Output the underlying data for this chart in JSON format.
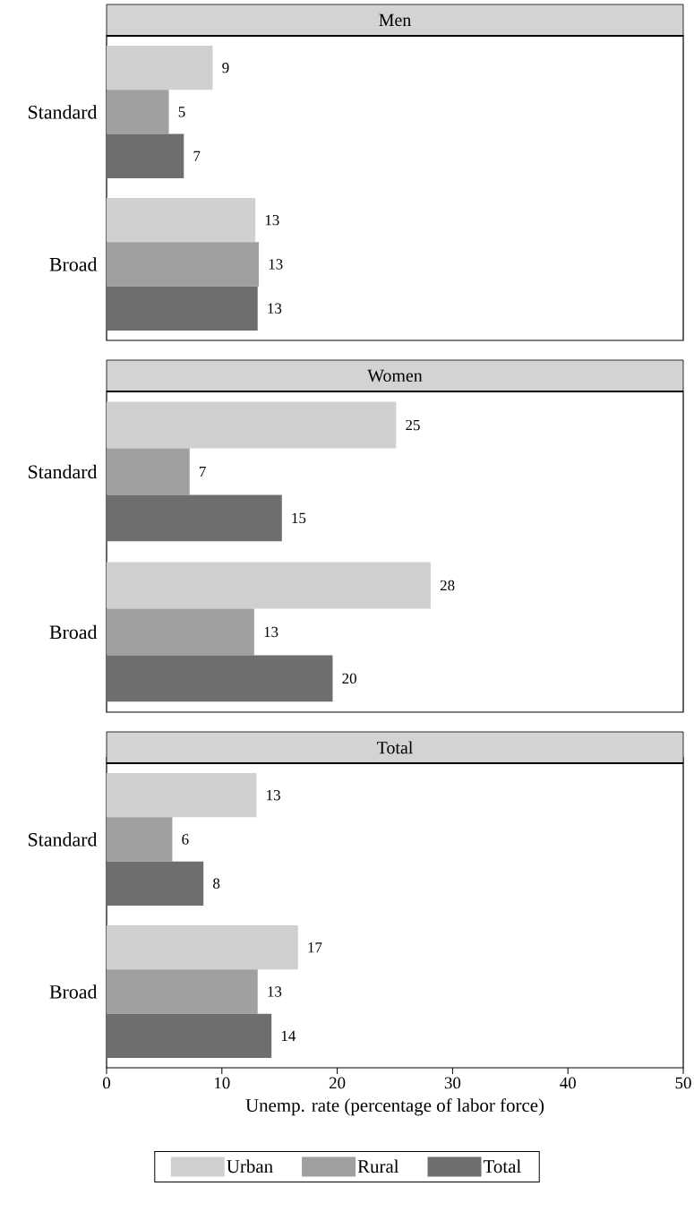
{
  "chart_data": [
    {
      "type": "bar",
      "orientation": "horizontal",
      "title": "Men",
      "categories": [
        "Standard",
        "Broad"
      ],
      "xlim": [
        0,
        50
      ],
      "tick_labels": "y",
      "series": [
        {
          "color": "#d0d0d0",
          "values": [
            9.2,
            12.9
          ],
          "value_labels": [
            "9",
            "13"
          ]
        },
        {
          "color": "#a0a0a0",
          "values": [
            5.4,
            13.2
          ],
          "value_labels": [
            "5",
            "13"
          ]
        },
        {
          "color": "#6e6e6e",
          "values": [
            6.7,
            13.1
          ],
          "value_labels": [
            "7",
            "13"
          ]
        }
      ]
    },
    {
      "type": "bar",
      "orientation": "horizontal",
      "title": "Women",
      "categories": [
        "Standard",
        "Broad"
      ],
      "xlim": [
        0,
        50
      ],
      "tick_labels": "y",
      "series": [
        {
          "color": "#d0d0d0",
          "values": [
            25.1,
            28.1
          ],
          "value_labels": [
            "25",
            "28"
          ]
        },
        {
          "color": "#a0a0a0",
          "values": [
            7.2,
            12.8
          ],
          "value_labels": [
            "7",
            "13"
          ]
        },
        {
          "color": "#6e6e6e",
          "values": [
            15.2,
            19.6
          ],
          "value_labels": [
            "15",
            "20"
          ]
        }
      ]
    },
    {
      "type": "bar",
      "orientation": "horizontal",
      "title": "Total",
      "categories": [
        "Standard",
        "Broad"
      ],
      "xlim": [
        0,
        50
      ],
      "xticks": [
        0,
        10,
        20,
        30,
        40,
        50
      ],
      "xlabel": "Unemp. rate (percentage of labor force)",
      "legend": "bottom",
      "series": [
        {
          "name": "Urban",
          "color": "#d0d0d0",
          "values": [
            13.0,
            16.6
          ],
          "value_labels": [
            "13",
            "17"
          ]
        },
        {
          "name": "Rural",
          "color": "#a0a0a0",
          "values": [
            5.7,
            13.1
          ],
          "value_labels": [
            "6",
            "13"
          ]
        },
        {
          "name": "Total",
          "color": "#6e6e6e",
          "values": [
            8.4,
            14.3
          ],
          "value_labels": [
            "8",
            "14"
          ]
        }
      ]
    }
  ]
}
